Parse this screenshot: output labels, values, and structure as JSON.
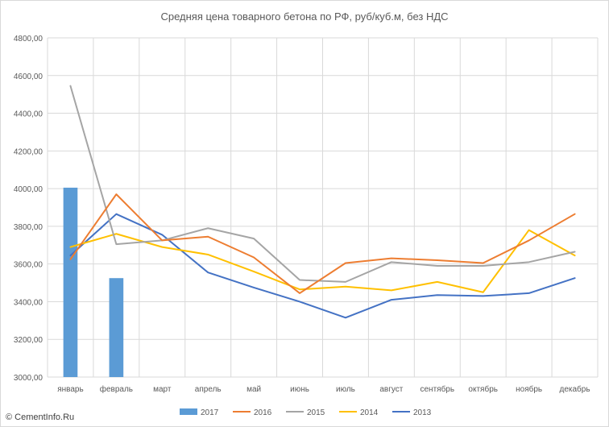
{
  "chart_data": {
    "type": "bar+line",
    "title": "Средняя цена товарного бетона по РФ, руб/куб.м, без НДС",
    "xlabel": "",
    "ylabel": "",
    "ylim": [
      3000,
      4800
    ],
    "ytick_step": 200,
    "y_tick_labels": [
      "3000,00",
      "3200,00",
      "3400,00",
      "3600,00",
      "3800,00",
      "4000,00",
      "4200,00",
      "4400,00",
      "4600,00",
      "4800,00"
    ],
    "categories": [
      "январь",
      "февраль",
      "март",
      "апрель",
      "май",
      "июнь",
      "июль",
      "август",
      "сентябрь",
      "октябрь",
      "ноябрь",
      "декабрь"
    ],
    "grid": "vertical and horizontal",
    "legend_position": "bottom",
    "series": [
      {
        "name": "2017",
        "kind": "bar",
        "color": "#5b9bd5",
        "values": [
          4005,
          3525,
          null,
          null,
          null,
          null,
          null,
          null,
          null,
          null,
          null,
          null
        ]
      },
      {
        "name": "2016",
        "kind": "line",
        "color": "#ed7d31",
        "values": [
          3625,
          3970,
          3725,
          3745,
          3635,
          3445,
          3605,
          3630,
          3620,
          3605,
          3725,
          3865
        ]
      },
      {
        "name": "2015",
        "kind": "line",
        "color": "#a5a5a5",
        "values": [
          4545,
          3705,
          3725,
          3790,
          3735,
          3515,
          3505,
          3610,
          3590,
          3590,
          3610,
          3665
        ]
      },
      {
        "name": "2014",
        "kind": "line",
        "color": "#ffc000",
        "values": [
          3690,
          3760,
          3690,
          3650,
          3560,
          3465,
          3480,
          3460,
          3505,
          3450,
          3780,
          3645
        ]
      },
      {
        "name": "2013",
        "kind": "line",
        "color": "#4472c4",
        "values": [
          3645,
          3865,
          3755,
          3555,
          3475,
          3400,
          3315,
          3410,
          3435,
          3430,
          3445,
          3525
        ]
      }
    ]
  },
  "watermark": "© CementInfo.Ru"
}
